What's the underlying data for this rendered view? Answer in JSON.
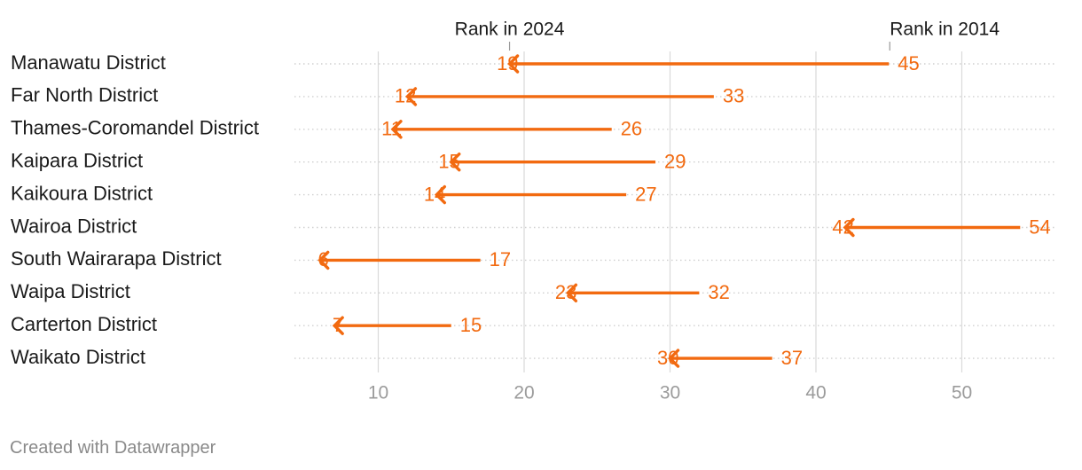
{
  "chart_data": {
    "type": "arrow",
    "categories": [
      "Manawatu District",
      "Far North District",
      "Thames-Coromandel District",
      "Kaipara District",
      "Kaikoura District",
      "Wairoa District",
      "South Wairarapa District",
      "Waipa District",
      "Carterton District",
      "Waikato District"
    ],
    "series": [
      {
        "name": "Rank in 2014",
        "values": [
          45,
          33,
          26,
          29,
          27,
          54,
          17,
          32,
          15,
          37
        ]
      },
      {
        "name": "Rank in 2024",
        "values": [
          19,
          12,
          11,
          15,
          14,
          42,
          6,
          23,
          7,
          30
        ]
      }
    ],
    "x_ticks": [
      10,
      20,
      30,
      40,
      50
    ],
    "xlim": [
      4.2,
      56.3
    ],
    "grid": "vertical",
    "legend": "top, above first row",
    "colors": {
      "arrow": "#f26a10",
      "text": "#1a1a1a",
      "tick": "#9b9b9b",
      "grid": "#d9d9d9",
      "rowline": "#cfcfcf"
    }
  },
  "footer": {
    "credit": "Created with Datawrapper"
  }
}
